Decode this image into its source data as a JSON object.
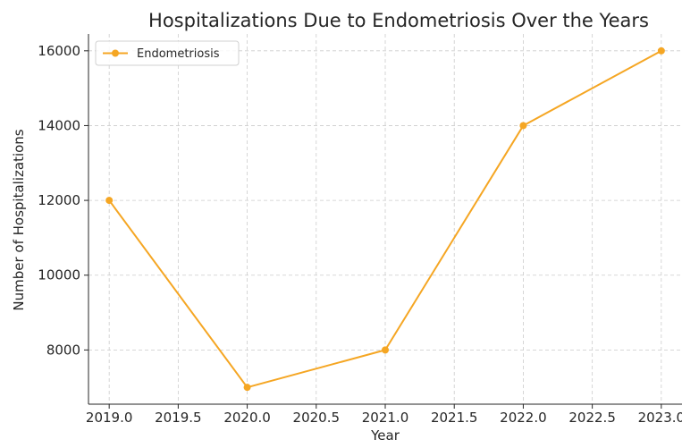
{
  "chart_data": {
    "type": "line",
    "title": "Hospitalizations Due to Endometriosis Over the Years",
    "xlabel": "Year",
    "ylabel": "Number of Hospitalizations",
    "x": [
      2019,
      2020,
      2021,
      2022,
      2023
    ],
    "series": [
      {
        "name": "Endometriosis",
        "values": [
          12000,
          7000,
          8000,
          14000,
          16000
        ],
        "color": "#f5a623",
        "marker": "circle"
      }
    ],
    "xlim": [
      2018.85,
      2023.15
    ],
    "ylim": [
      6550,
      16450
    ],
    "x_ticks": [
      2019.0,
      2019.5,
      2020.0,
      2020.5,
      2021.0,
      2021.5,
      2022.0,
      2022.5,
      2023.0
    ],
    "x_tick_labels": [
      "2019.0",
      "2019.5",
      "2020.0",
      "2020.5",
      "2021.0",
      "2021.5",
      "2022.0",
      "2022.5",
      "2023.0"
    ],
    "y_ticks": [
      8000,
      10000,
      12000,
      14000,
      16000
    ],
    "y_tick_labels": [
      "8000",
      "10000",
      "12000",
      "14000",
      "16000"
    ],
    "grid": true,
    "grid_style": "dashed",
    "legend_position": "top-left",
    "colors": {
      "axis": "#262626",
      "grid": "#cccccc",
      "line": "#f5a623"
    }
  }
}
